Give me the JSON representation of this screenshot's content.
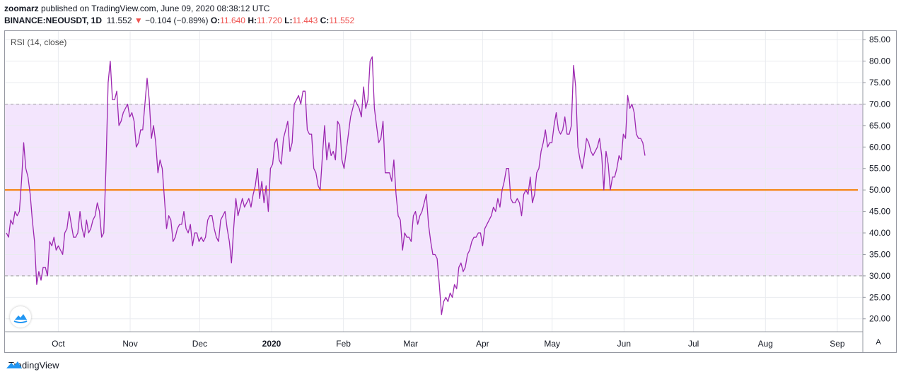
{
  "header": {
    "publisher": "zoomarz",
    "published_text": "published on TradingView.com, June 09, 2020 08:38:12 UTC",
    "symbol": "BINANCE:NEOUSDT, 1D",
    "last_price": "11.552",
    "change_arrow": "▼",
    "change": "−0.104 (−0.89%)",
    "open_label": "O:",
    "open": "11.640",
    "high_label": "H:",
    "high": "11.720",
    "low_label": "L:",
    "low": "11.443",
    "close_label": "C:",
    "close": "11.552"
  },
  "indicator_label": "RSI (14, close)",
  "axis_button": "A",
  "footer": {
    "brand": "TradingView"
  },
  "colors": {
    "rsi_line": "#9c27b0",
    "midline": "#f57c00",
    "band_fill": "#f3e5fd",
    "band_border": "#9e9e9e"
  },
  "chart_data": {
    "type": "line",
    "title": "RSI (14, close)",
    "ylim": [
      17,
      87
    ],
    "y_ticks": [
      20,
      25,
      30,
      35,
      40,
      45,
      50,
      55,
      60,
      65,
      70,
      75,
      80,
      85
    ],
    "y_tick_labels": [
      "20.00",
      "25.00",
      "30.00",
      "35.00",
      "40.00",
      "45.00",
      "50.00",
      "55.00",
      "60.00",
      "65.00",
      "70.00",
      "75.00",
      "80.00",
      "85.00"
    ],
    "x_ticks": [
      {
        "label": "Oct",
        "day": 23
      },
      {
        "label": "Nov",
        "day": 54
      },
      {
        "label": "Dec",
        "day": 84
      },
      {
        "label": "2020",
        "day": 115
      },
      {
        "label": "Feb",
        "day": 146
      },
      {
        "label": "Mar",
        "day": 175
      },
      {
        "label": "Apr",
        "day": 206
      },
      {
        "label": "May",
        "day": 236
      },
      {
        "label": "Jun",
        "day": 267
      },
      {
        "label": "Jul",
        "day": 297
      },
      {
        "label": "Aug",
        "day": 328
      },
      {
        "label": "Sep",
        "day": 359
      }
    ],
    "x_range": [
      0,
      370
    ],
    "band": {
      "upper": 70,
      "lower": 30
    },
    "midline": 50,
    "series": [
      {
        "values": [
          40,
          39,
          43,
          42,
          45,
          44,
          45,
          52,
          61,
          55,
          53,
          49,
          43,
          38,
          28,
          31,
          29,
          32,
          32,
          30,
          38,
          37,
          39,
          36,
          37,
          36,
          35,
          40,
          41,
          45,
          42,
          39,
          39,
          40,
          45,
          41,
          39,
          43,
          40,
          41,
          43,
          44,
          47,
          45,
          39,
          40,
          55,
          75,
          80,
          71,
          71,
          73,
          65,
          66,
          68,
          69,
          70,
          67,
          68,
          66,
          60,
          61,
          64,
          64,
          70,
          76,
          71,
          62,
          65,
          61,
          54,
          57,
          55,
          48,
          41,
          44,
          43,
          38,
          39,
          41,
          42,
          42,
          45,
          41,
          40,
          42,
          37,
          40,
          40,
          38,
          39,
          38,
          39,
          43,
          44,
          44,
          41,
          39,
          38,
          43,
          44,
          45,
          41,
          38,
          33,
          41,
          48,
          44,
          46,
          48,
          46,
          47,
          48,
          46,
          49,
          51,
          55,
          48,
          52,
          47,
          51,
          45,
          55,
          56,
          61,
          62,
          57,
          56,
          62,
          64,
          66,
          59,
          61,
          70,
          71,
          72,
          70,
          73,
          73,
          64,
          63,
          63,
          55,
          54,
          51,
          50,
          58,
          65,
          57,
          61,
          58,
          59,
          57,
          66,
          65,
          57,
          55,
          59,
          63,
          67,
          69,
          71,
          70,
          69,
          67,
          74,
          69,
          71,
          80,
          81,
          69,
          65,
          61,
          62,
          66,
          54,
          54,
          54,
          52,
          57,
          49,
          44,
          43,
          36,
          40,
          39,
          39,
          38,
          44,
          45,
          42,
          44,
          45,
          47,
          49,
          42,
          38,
          35,
          35,
          34,
          28,
          21,
          24,
          25,
          24,
          26,
          25,
          28,
          27,
          32,
          33,
          31,
          32,
          35,
          36,
          38,
          39,
          39,
          40,
          40,
          37,
          41,
          42,
          43,
          44,
          46,
          45,
          48,
          46,
          50,
          52,
          55,
          55,
          48,
          47,
          47,
          48,
          47,
          44,
          49,
          50,
          49,
          53,
          47,
          49,
          54,
          55,
          59,
          61,
          64,
          60,
          61,
          61,
          65,
          68,
          64,
          63,
          64,
          67,
          63,
          63,
          65,
          79,
          74,
          60,
          57,
          55,
          58,
          62,
          61,
          59,
          58,
          59,
          60,
          62,
          58,
          50,
          59,
          56,
          50,
          53,
          53,
          55,
          58,
          57,
          63,
          62,
          72,
          69,
          70,
          68,
          63,
          62,
          62,
          61,
          58
        ]
      }
    ],
    "grid": true
  }
}
